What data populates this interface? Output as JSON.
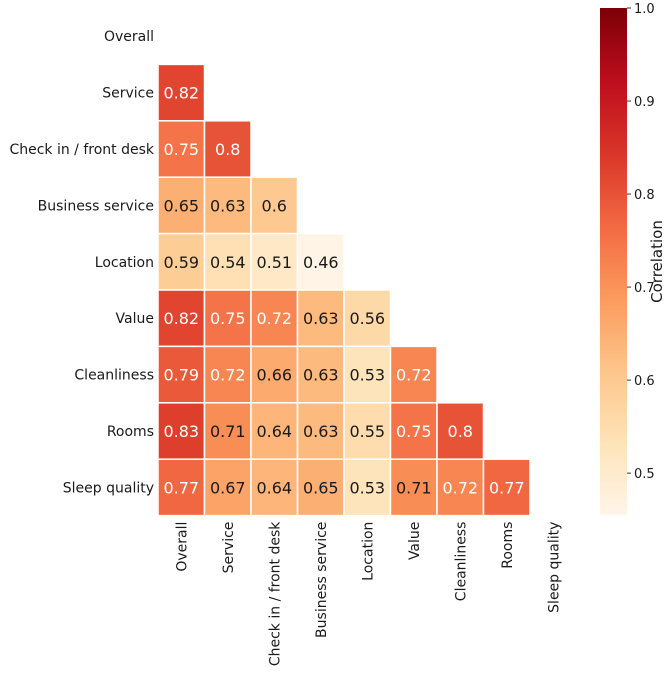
{
  "chart_data": {
    "type": "heatmap",
    "title": "",
    "categories": [
      "Overall",
      "Service",
      "Check in / front desk",
      "Business service",
      "Location",
      "Value",
      "Cleanliness",
      "Rooms",
      "Sleep quality"
    ],
    "lower_triangle_only": true,
    "matrix": [
      [
        null,
        null,
        null,
        null,
        null,
        null,
        null,
        null,
        null
      ],
      [
        0.82,
        null,
        null,
        null,
        null,
        null,
        null,
        null,
        null
      ],
      [
        0.75,
        0.8,
        null,
        null,
        null,
        null,
        null,
        null,
        null
      ],
      [
        0.65,
        0.63,
        0.6,
        null,
        null,
        null,
        null,
        null,
        null
      ],
      [
        0.59,
        0.54,
        0.51,
        0.46,
        null,
        null,
        null,
        null,
        null
      ],
      [
        0.82,
        0.75,
        0.72,
        0.63,
        0.56,
        null,
        null,
        null,
        null
      ],
      [
        0.79,
        0.72,
        0.66,
        0.63,
        0.53,
        0.72,
        null,
        null,
        null
      ],
      [
        0.83,
        0.71,
        0.64,
        0.63,
        0.55,
        0.75,
        0.8,
        null,
        null
      ],
      [
        0.77,
        0.67,
        0.64,
        0.65,
        0.53,
        0.71,
        0.72,
        0.77,
        null
      ]
    ],
    "colorbar": {
      "label": "Correlation",
      "range": [
        0.455,
        1.0
      ],
      "ticks": [
        0.5,
        0.6,
        0.7,
        0.8,
        0.9,
        1.0
      ],
      "colormap": "OrRd-like (light cream to dark red)",
      "colors": [
        "#fff5e9",
        "#fee3b8",
        "#fdc58a",
        "#fc9a5d",
        "#f26942",
        "#d93528",
        "#bd0d1d",
        "#7c0006"
      ]
    },
    "grid": false,
    "cell_border_color": "#ffffff"
  }
}
